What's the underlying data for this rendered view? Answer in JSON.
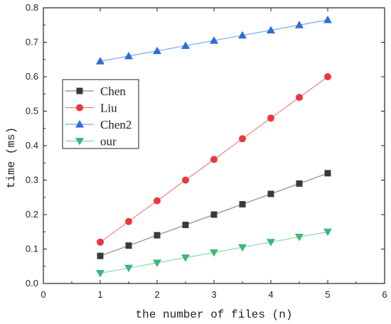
{
  "chart_data": {
    "type": "line",
    "xlabel": "the number of files (n)",
    "ylabel": "time (ms)",
    "xlim": [
      0,
      6
    ],
    "ylim": [
      0,
      0.8
    ],
    "x_ticks": [
      0,
      1,
      2,
      3,
      4,
      5,
      6
    ],
    "y_ticks": [
      0.0,
      0.1,
      0.2,
      0.3,
      0.4,
      0.5,
      0.6,
      0.7,
      0.8
    ],
    "x_tick_labels": [
      "0",
      "1",
      "2",
      "3",
      "4",
      "5",
      "6"
    ],
    "y_tick_labels": [
      "0.0",
      "0.1",
      "0.2",
      "0.3",
      "0.4",
      "0.5",
      "0.6",
      "0.7",
      "0.8"
    ],
    "grid": false,
    "legend_position": "center-left",
    "x": [
      1,
      1.5,
      2,
      2.5,
      3,
      3.5,
      4,
      4.5,
      5
    ],
    "series": [
      {
        "name": "Chen",
        "marker": "square",
        "color": "#3a3a3a",
        "line_color": "#8a8a8a",
        "values": [
          0.08,
          0.11,
          0.14,
          0.17,
          0.2,
          0.23,
          0.26,
          0.29,
          0.32
        ]
      },
      {
        "name": "Liu",
        "marker": "circle",
        "color": "#e8383d",
        "line_color": "#f08080",
        "values": [
          0.12,
          0.18,
          0.24,
          0.3,
          0.36,
          0.42,
          0.48,
          0.54,
          0.6
        ]
      },
      {
        "name": "Chen2",
        "marker": "triangle-up",
        "color": "#2a6fd6",
        "line_color": "#7aaae8",
        "values": [
          0.645,
          0.66,
          0.675,
          0.69,
          0.705,
          0.72,
          0.735,
          0.75,
          0.765
        ]
      },
      {
        "name": "our",
        "marker": "triangle-down",
        "color": "#3cb878",
        "line_color": "#8fd6ae",
        "values": [
          0.03,
          0.045,
          0.06,
          0.075,
          0.09,
          0.105,
          0.12,
          0.135,
          0.15
        ]
      }
    ]
  }
}
